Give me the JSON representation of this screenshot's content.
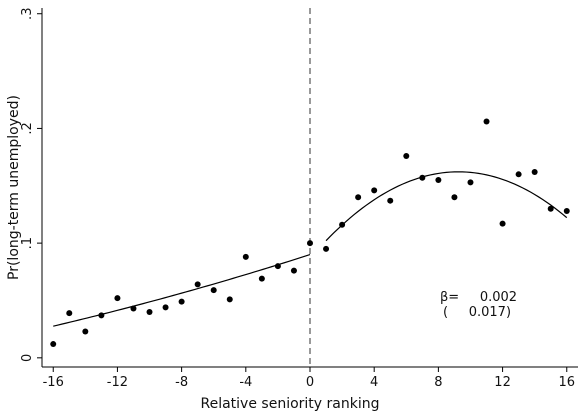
{
  "chart_data": {
    "type": "scatter",
    "title": "",
    "xlabel": "Relative seniority ranking",
    "ylabel": "Pr(long-term unemployed)",
    "xlim": [
      -16.7,
      16.7
    ],
    "ylim": [
      -0.008,
      0.305
    ],
    "x_ticks": [
      -16,
      -12,
      -8,
      -4,
      0,
      4,
      8,
      12,
      16
    ],
    "x_tick_labels": [
      "-16",
      "-12",
      "-8",
      "-4",
      "0",
      "4",
      "8",
      "12",
      "16"
    ],
    "y_ticks": [
      0,
      0.1,
      0.2,
      0.3
    ],
    "y_tick_labels": [
      "0",
      ".1",
      ".2",
      ".3"
    ],
    "grid": false,
    "cutoff_x": 0,
    "points": [
      {
        "x": -16,
        "y": 0.012
      },
      {
        "x": -15,
        "y": 0.039
      },
      {
        "x": -14,
        "y": 0.023
      },
      {
        "x": -13,
        "y": 0.037
      },
      {
        "x": -12,
        "y": 0.052
      },
      {
        "x": -11,
        "y": 0.043
      },
      {
        "x": -10,
        "y": 0.04
      },
      {
        "x": -9,
        "y": 0.044
      },
      {
        "x": -8,
        "y": 0.049
      },
      {
        "x": -7,
        "y": 0.064
      },
      {
        "x": -6,
        "y": 0.059
      },
      {
        "x": -5,
        "y": 0.051
      },
      {
        "x": -4,
        "y": 0.088
      },
      {
        "x": -3,
        "y": 0.069
      },
      {
        "x": -2,
        "y": 0.08
      },
      {
        "x": -1,
        "y": 0.076
      },
      {
        "x": 0,
        "y": 0.1
      },
      {
        "x": 1,
        "y": 0.095
      },
      {
        "x": 2,
        "y": 0.116
      },
      {
        "x": 3,
        "y": 0.14
      },
      {
        "x": 4,
        "y": 0.146
      },
      {
        "x": 5,
        "y": 0.137
      },
      {
        "x": 6,
        "y": 0.176
      },
      {
        "x": 7,
        "y": 0.157
      },
      {
        "x": 8,
        "y": 0.155
      },
      {
        "x": 9,
        "y": 0.14
      },
      {
        "x": 10,
        "y": 0.153
      },
      {
        "x": 11,
        "y": 0.206
      },
      {
        "x": 12,
        "y": 0.117
      },
      {
        "x": 13,
        "y": 0.16
      },
      {
        "x": 14,
        "y": 0.162
      },
      {
        "x": 15,
        "y": 0.13
      },
      {
        "x": 16,
        "y": 0.128
      }
    ],
    "fit_left": {
      "x_range": [
        -16,
        0
      ],
      "coef": [
        0.09,
        0.0045,
        3.75e-05
      ]
    },
    "fit_right": {
      "x_range": [
        1,
        16
      ],
      "coef": [
        0.0867,
        0.0163,
        -0.00088
      ]
    },
    "annotation": {
      "line1": "β=     0.002",
      "line2": "(     0.017)"
    }
  }
}
